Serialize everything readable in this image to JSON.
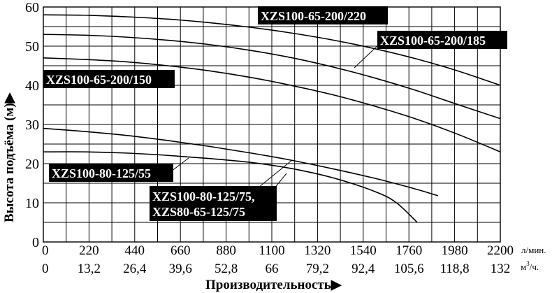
{
  "chart_data": {
    "type": "line",
    "title": "",
    "ylabel": "Высота подъёма (м)",
    "ylabel_arrow": "▶",
    "xlabel": "Производительность",
    "xlabel_arrow": "▶",
    "ylim": [
      0,
      60
    ],
    "yticks": [
      0,
      10,
      20,
      30,
      40,
      50,
      60
    ],
    "xlim": [
      0,
      2200
    ],
    "xticks": [
      0,
      220,
      440,
      660,
      880,
      1100,
      1320,
      1540,
      1760,
      1980,
      2200
    ],
    "x_unit": "л/мин.",
    "x2_ticks": [
      "0",
      "13,2",
      "26,4",
      "39,6",
      "52,8",
      "66",
      "79,2",
      "92,4",
      "105,6",
      "118,8",
      "132"
    ],
    "x2_unit_base": "м",
    "x2_unit_sup": "3",
    "x2_unit_tail": "/ч.",
    "grid": true,
    "series": [
      {
        "x": [
          0,
          200,
          400,
          600,
          800,
          1000,
          1200,
          1400,
          1600,
          1800,
          2000,
          2200
        ],
        "y": [
          58,
          57.9,
          57.5,
          56.9,
          56.0,
          54.8,
          53.3,
          51.5,
          49.3,
          46.7,
          43.6,
          40.0
        ]
      },
      {
        "x": [
          0,
          200,
          400,
          600,
          800,
          1000,
          1200,
          1400,
          1600,
          1800,
          2000,
          2200
        ],
        "y": [
          53,
          52.8,
          52.3,
          51.5,
          50.4,
          48.9,
          47.0,
          44.6,
          41.8,
          38.6,
          35.0,
          31.5
        ]
      },
      {
        "x": [
          0,
          200,
          400,
          600,
          800,
          1000,
          1200,
          1400,
          1600,
          1800,
          2000,
          2200
        ],
        "y": [
          47,
          46.6,
          46.0,
          45.0,
          43.7,
          42.0,
          39.9,
          37.5,
          34.6,
          31.3,
          27.4,
          23.0
        ]
      },
      {
        "x": [
          0,
          200,
          400,
          600,
          800,
          1000,
          1200,
          1400,
          1600,
          1800,
          1900
        ],
        "y": [
          29,
          28.2,
          27.2,
          25.9,
          24.4,
          22.7,
          20.8,
          18.6,
          16.2,
          13.4,
          11.8
        ]
      },
      {
        "x": [
          0,
          200,
          400,
          600,
          800,
          1000,
          1200,
          1400,
          1600,
          1700,
          1800
        ],
        "y": [
          23,
          23.0,
          22.7,
          22.1,
          21.3,
          20.3,
          18.7,
          16.3,
          12.8,
          10.0,
          5.0
        ]
      }
    ],
    "annotations": [
      {
        "text": "XZS100-65-200/220"
      },
      {
        "text": "XZS100-65-200/185"
      },
      {
        "text": "XZS100-65-200/150"
      },
      {
        "text": "XZS100-80-125/55"
      },
      {
        "text": "XZS100-80-125/75,"
      },
      {
        "text": "XZS80-65-125/75"
      }
    ]
  }
}
